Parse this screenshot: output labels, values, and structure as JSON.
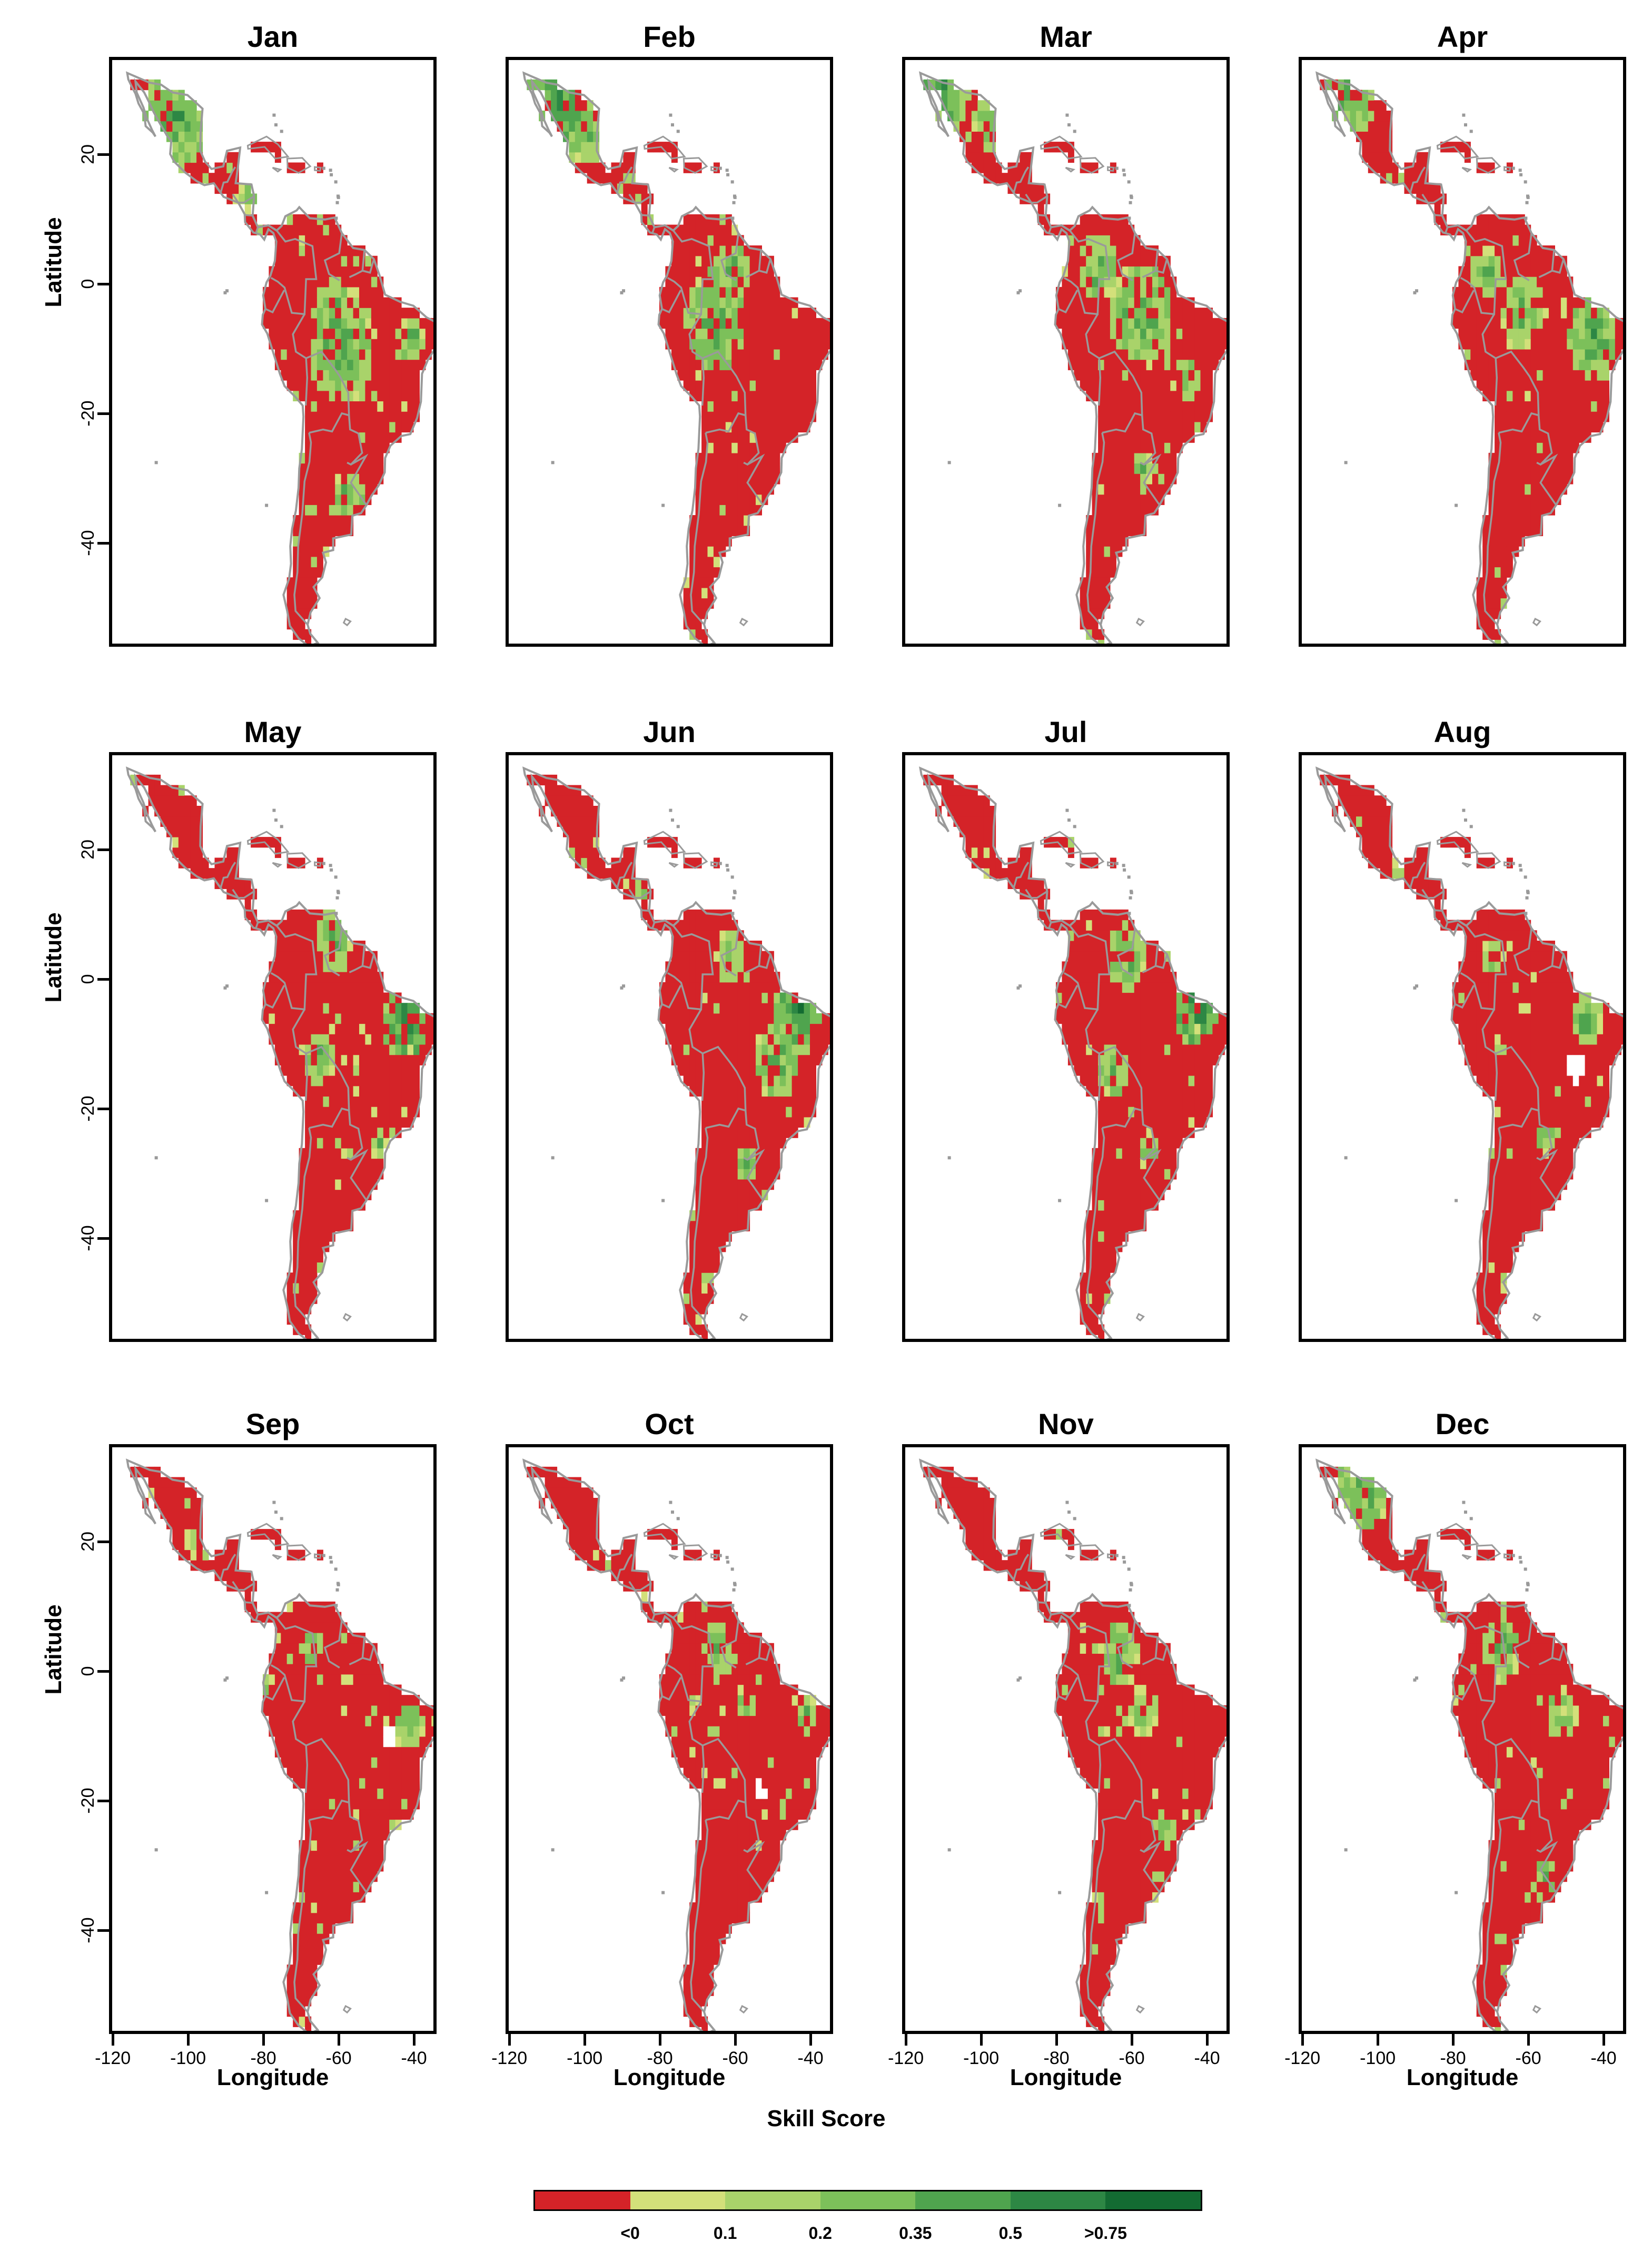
{
  "figure": {
    "panels": [
      "Jan",
      "Feb",
      "Mar",
      "Apr",
      "May",
      "Jun",
      "Jul",
      "Aug",
      "Sep",
      "Oct",
      "Nov",
      "Dec"
    ],
    "ylabel": "Latitude",
    "xlabel": "Longitude",
    "yticks": [
      "20",
      "0",
      "-20",
      "-40"
    ],
    "xticks": [
      "-120",
      "-100",
      "-80",
      "-60",
      "-40"
    ],
    "xrange": [
      -121,
      -34
    ],
    "yrange": [
      -56,
      35
    ],
    "legend": {
      "title": "Skill Score",
      "labels": [
        "<0",
        "0.1",
        "0.2",
        "0.35",
        "0.5",
        ">0.75"
      ],
      "colors": [
        "#d42328",
        "#d3e07a",
        "#a9d36a",
        "#7cc05a",
        "#4fa44e",
        "#2d8744",
        "#136b32"
      ]
    },
    "land_color": "#d42328",
    "border_color": "#9a9a9a"
  }
}
